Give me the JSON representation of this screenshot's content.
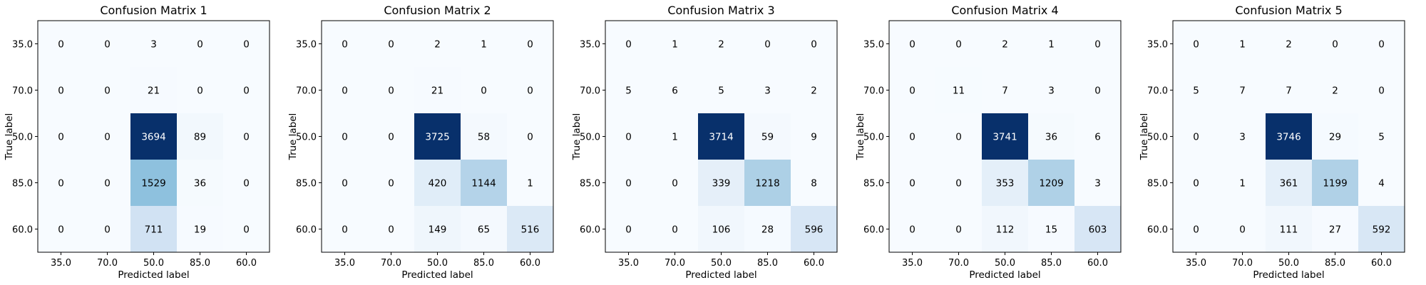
{
  "chart_data": [
    {
      "type": "heatmap",
      "title": "Confusion Matrix 1",
      "xlabel": "Predicted label",
      "ylabel": "True label",
      "x_categories": [
        "35.0",
        "70.0",
        "50.0",
        "85.0",
        "60.0"
      ],
      "y_categories": [
        "35.0",
        "70.0",
        "50.0",
        "85.0",
        "60.0"
      ],
      "colormap": "Blues",
      "values": [
        [
          0,
          0,
          3,
          0,
          0
        ],
        [
          0,
          0,
          21,
          0,
          0
        ],
        [
          0,
          0,
          3694,
          89,
          0
        ],
        [
          0,
          0,
          1529,
          36,
          0
        ],
        [
          0,
          0,
          711,
          19,
          0
        ]
      ]
    },
    {
      "type": "heatmap",
      "title": "Confusion Matrix 2",
      "xlabel": "Predicted label",
      "ylabel": "True label",
      "x_categories": [
        "35.0",
        "70.0",
        "50.0",
        "85.0",
        "60.0"
      ],
      "y_categories": [
        "35.0",
        "70.0",
        "50.0",
        "85.0",
        "60.0"
      ],
      "colormap": "Blues",
      "values": [
        [
          0,
          0,
          2,
          1,
          0
        ],
        [
          0,
          0,
          21,
          0,
          0
        ],
        [
          0,
          0,
          3725,
          58,
          0
        ],
        [
          0,
          0,
          420,
          1144,
          1
        ],
        [
          0,
          0,
          149,
          65,
          516
        ]
      ]
    },
    {
      "type": "heatmap",
      "title": "Confusion Matrix 3",
      "xlabel": "Predicted label",
      "ylabel": "True label",
      "x_categories": [
        "35.0",
        "70.0",
        "50.0",
        "85.0",
        "60.0"
      ],
      "y_categories": [
        "35.0",
        "70.0",
        "50.0",
        "85.0",
        "60.0"
      ],
      "colormap": "Blues",
      "values": [
        [
          0,
          1,
          2,
          0,
          0
        ],
        [
          5,
          6,
          5,
          3,
          2
        ],
        [
          0,
          1,
          3714,
          59,
          9
        ],
        [
          0,
          0,
          339,
          1218,
          8
        ],
        [
          0,
          0,
          106,
          28,
          596
        ]
      ]
    },
    {
      "type": "heatmap",
      "title": "Confusion Matrix 4",
      "xlabel": "Predicted label",
      "ylabel": "True label",
      "x_categories": [
        "35.0",
        "70.0",
        "50.0",
        "85.0",
        "60.0"
      ],
      "y_categories": [
        "35.0",
        "70.0",
        "50.0",
        "85.0",
        "60.0"
      ],
      "colormap": "Blues",
      "values": [
        [
          0,
          0,
          2,
          1,
          0
        ],
        [
          0,
          11,
          7,
          3,
          0
        ],
        [
          0,
          0,
          3741,
          36,
          6
        ],
        [
          0,
          0,
          353,
          1209,
          3
        ],
        [
          0,
          0,
          112,
          15,
          603
        ]
      ]
    },
    {
      "type": "heatmap",
      "title": "Confusion Matrix 5",
      "xlabel": "Predicted label",
      "ylabel": "True label",
      "x_categories": [
        "35.0",
        "70.0",
        "50.0",
        "85.0",
        "60.0"
      ],
      "y_categories": [
        "35.0",
        "70.0",
        "50.0",
        "85.0",
        "60.0"
      ],
      "colormap": "Blues",
      "values": [
        [
          0,
          1,
          2,
          0,
          0
        ],
        [
          5,
          7,
          7,
          2,
          0
        ],
        [
          0,
          3,
          3746,
          29,
          5
        ],
        [
          0,
          1,
          361,
          1199,
          4
        ],
        [
          0,
          0,
          111,
          27,
          592
        ]
      ]
    }
  ]
}
